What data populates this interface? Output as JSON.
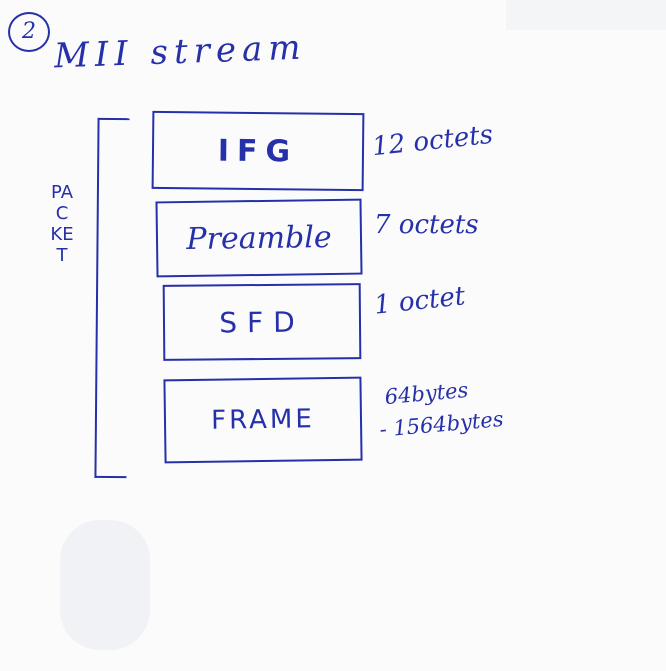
{
  "step_number": "2",
  "title": "MII stream",
  "side_label": "PACKET",
  "fields": [
    {
      "label": "IFG",
      "size": "12 octets"
    },
    {
      "label": "Preamble",
      "size": "7 octets"
    },
    {
      "label": "SFD",
      "size": "1 octet"
    },
    {
      "label": "FRAME",
      "size_lines": [
        "64bytes",
        "- 1564bytes"
      ]
    }
  ],
  "colors": {
    "ink": "#2630a8",
    "paper": "#fbfbfc"
  }
}
